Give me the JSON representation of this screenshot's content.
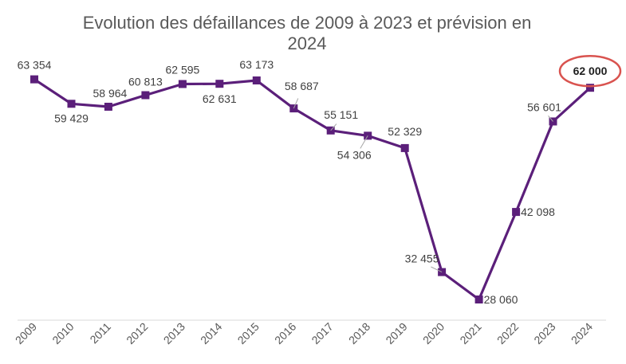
{
  "chart_data": {
    "type": "line",
    "title": "Evolution des défaillances de 2009 à 2023 et prévision en 2024",
    "title_lines": [
      "Evolution des défaillances de 2009 à 2023 et prévision en",
      "2024"
    ],
    "xlabel": "",
    "ylabel": "",
    "categories": [
      "2009",
      "2010",
      "2011",
      "2012",
      "2013",
      "2014",
      "2015",
      "2016",
      "2017",
      "2018",
      "2019",
      "2020",
      "2021",
      "2022",
      "2023",
      "2024"
    ],
    "series": [
      {
        "name": "Défaillances",
        "values": [
          63354,
          59429,
          58964,
          60813,
          62595,
          62631,
          63173,
          58687,
          55151,
          54306,
          52329,
          32455,
          28060,
          42098,
          56601,
          62000
        ],
        "labels": [
          "63 354",
          "59 429",
          "58 964",
          "60 813",
          "62 595",
          "62 631",
          "63 173",
          "58 687",
          "55 151",
          "54 306",
          "52 329",
          "32 455",
          "28 060",
          "42 098",
          "56 601",
          "62 000"
        ],
        "color": "#5b1f7a"
      }
    ],
    "ylim": [
      26000,
      66000
    ],
    "grid": false,
    "legend": "none",
    "highlight": {
      "category": "2024",
      "color": "#d9534f"
    }
  }
}
